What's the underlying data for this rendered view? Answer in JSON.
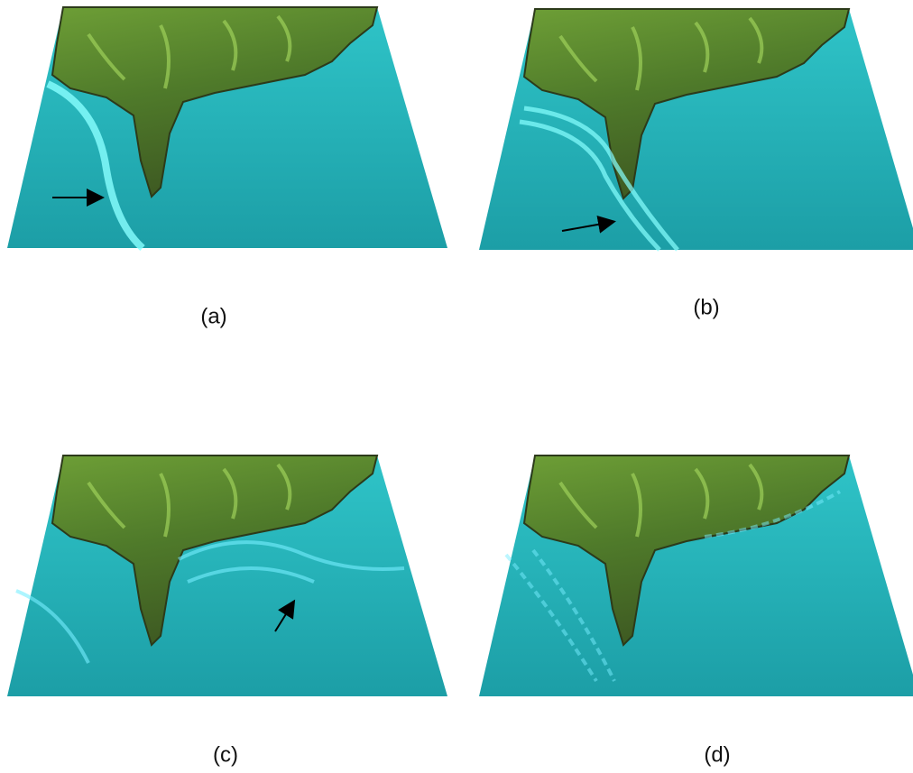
{
  "panels": [
    {
      "label": "(a)"
    },
    {
      "label": "(b)"
    },
    {
      "label": "(c)"
    },
    {
      "label": "(d)"
    }
  ]
}
